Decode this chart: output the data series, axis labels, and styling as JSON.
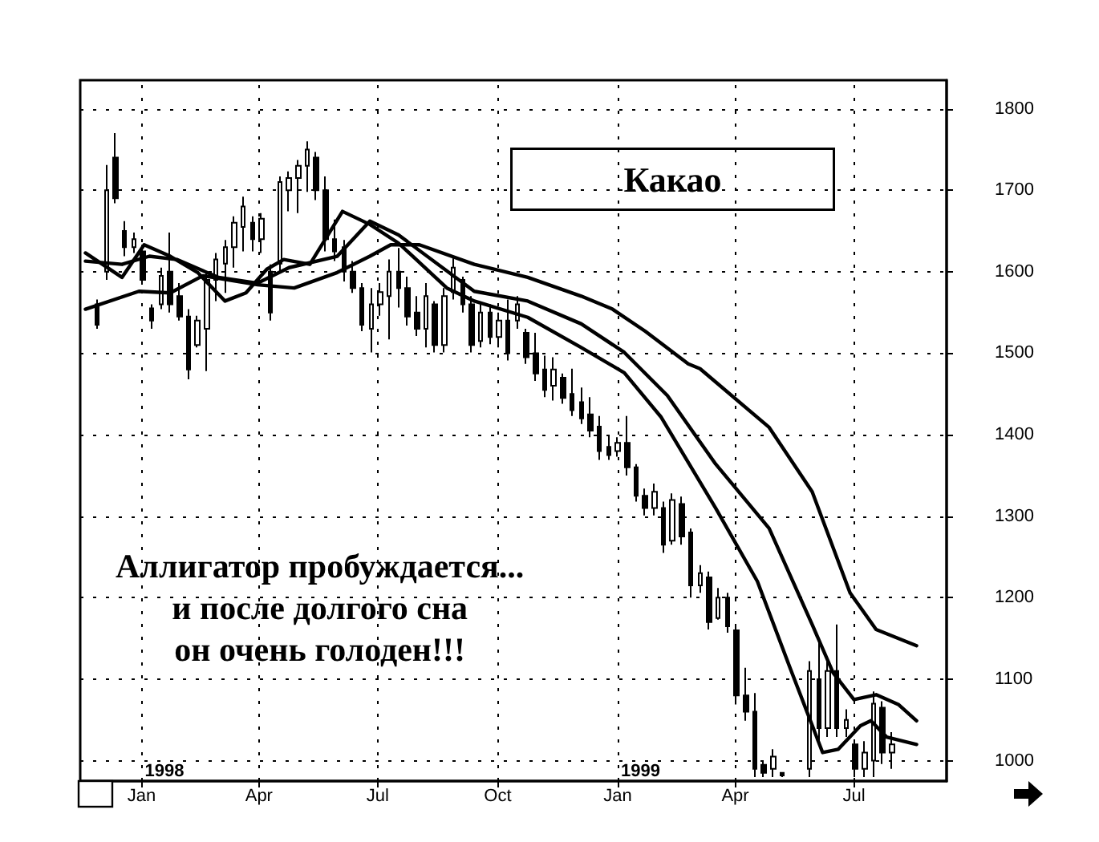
{
  "chart_data": {
    "type": "candlestick",
    "title": "Какао",
    "color": "#000000",
    "annotations": [
      "Аллигатор пробуждается...\nи после долгого сна\nон очень голоден!!!",
      "1998",
      "1999"
    ],
    "x": [
      "1997-11-28",
      "1997-12-05",
      "1997-12-12",
      "1997-12-19",
      "1997-12-26",
      "1998-01-02",
      "1998-01-09",
      "1998-01-16",
      "1998-01-23",
      "1998-01-30",
      "1998-02-06",
      "1998-02-13",
      "1998-02-20",
      "1998-02-27",
      "1998-03-06",
      "1998-03-13",
      "1998-03-20",
      "1998-03-27",
      "1998-04-03",
      "1998-04-10",
      "1998-04-17",
      "1998-04-24",
      "1998-05-01",
      "1998-05-08",
      "1998-05-15",
      "1998-05-22",
      "1998-05-29",
      "1998-06-05",
      "1998-06-12",
      "1998-06-19",
      "1998-06-26",
      "1998-07-03",
      "1998-07-10",
      "1998-07-17",
      "1998-07-24",
      "1998-07-31",
      "1998-08-07",
      "1998-08-14",
      "1998-08-21",
      "1998-08-28",
      "1998-09-04",
      "1998-09-11",
      "1998-09-18",
      "1998-09-25",
      "1998-10-02",
      "1998-10-09",
      "1998-10-16",
      "1998-10-23",
      "1998-10-30",
      "1998-11-06",
      "1998-11-13",
      "1998-11-20",
      "1998-11-27",
      "1998-12-04",
      "1998-12-11",
      "1998-12-18",
      "1998-12-25",
      "1999-01-01",
      "1999-01-08",
      "1999-01-15",
      "1999-01-22",
      "1999-01-29",
      "1999-02-05",
      "1999-02-12",
      "1999-02-19",
      "1999-02-26",
      "1999-03-05",
      "1999-03-12",
      "1999-03-19",
      "1999-03-26",
      "1999-04-02",
      "1999-04-09",
      "1999-04-16",
      "1999-04-23",
      "1999-04-30",
      "1999-05-07",
      "1999-05-28",
      "1999-06-04",
      "1999-06-11",
      "1999-06-18",
      "1999-06-25",
      "1999-07-02",
      "1999-07-09",
      "1999-07-16",
      "1999-07-23",
      "1999-07-30"
    ],
    "ohlc": [
      [
        1560,
        1566,
        1530,
        1535
      ],
      [
        1600,
        1731,
        1590,
        1700
      ],
      [
        1740,
        1770,
        1684,
        1690
      ],
      [
        1650,
        1662,
        1619,
        1630
      ],
      [
        1630,
        1648,
        1623,
        1640
      ],
      [
        1625,
        1633,
        1584,
        1590
      ],
      [
        1555,
        1560,
        1530,
        1540
      ],
      [
        1560,
        1605,
        1554,
        1595
      ],
      [
        1600,
        1648,
        1550,
        1560
      ],
      [
        1570,
        1586,
        1540,
        1545
      ],
      [
        1545,
        1554,
        1468,
        1480
      ],
      [
        1510,
        1546,
        1507,
        1540
      ],
      [
        1530,
        1600,
        1478,
        1590
      ],
      [
        1590,
        1623,
        1564,
        1615
      ],
      [
        1610,
        1639,
        1574,
        1630
      ],
      [
        1630,
        1668,
        1605,
        1660
      ],
      [
        1655,
        1692,
        1625,
        1680
      ],
      [
        1660,
        1668,
        1625,
        1640
      ],
      [
        1640,
        1672,
        1623,
        1665
      ],
      [
        1600,
        1609,
        1540,
        1550
      ],
      [
        1610,
        1717,
        1600,
        1710
      ],
      [
        1700,
        1723,
        1674,
        1715
      ],
      [
        1715,
        1737,
        1672,
        1730
      ],
      [
        1730,
        1760,
        1698,
        1750
      ],
      [
        1740,
        1747,
        1688,
        1700
      ],
      [
        1700,
        1717,
        1625,
        1640
      ],
      [
        1640,
        1664,
        1613,
        1625
      ],
      [
        1630,
        1639,
        1588,
        1600
      ],
      [
        1600,
        1613,
        1574,
        1580
      ],
      [
        1580,
        1586,
        1527,
        1535
      ],
      [
        1530,
        1580,
        1501,
        1560
      ],
      [
        1560,
        1586,
        1546,
        1575
      ],
      [
        1570,
        1615,
        1517,
        1600
      ],
      [
        1600,
        1629,
        1556,
        1580
      ],
      [
        1580,
        1594,
        1534,
        1545
      ],
      [
        1550,
        1570,
        1521,
        1530
      ],
      [
        1530,
        1586,
        1507,
        1570
      ],
      [
        1560,
        1564,
        1501,
        1510
      ],
      [
        1510,
        1580,
        1501,
        1570
      ],
      [
        1575,
        1619,
        1566,
        1605
      ],
      [
        1590,
        1594,
        1550,
        1560
      ],
      [
        1560,
        1570,
        1501,
        1510
      ],
      [
        1515,
        1560,
        1507,
        1550
      ],
      [
        1550,
        1560,
        1511,
        1520
      ],
      [
        1520,
        1550,
        1507,
        1540
      ],
      [
        1540,
        1566,
        1491,
        1500
      ],
      [
        1540,
        1570,
        1530,
        1560
      ],
      [
        1525,
        1530,
        1487,
        1495
      ],
      [
        1500,
        1525,
        1466,
        1475
      ],
      [
        1480,
        1497,
        1446,
        1455
      ],
      [
        1460,
        1495,
        1442,
        1480
      ],
      [
        1470,
        1475,
        1438,
        1445
      ],
      [
        1450,
        1481,
        1423,
        1430
      ],
      [
        1440,
        1458,
        1413,
        1420
      ],
      [
        1425,
        1446,
        1397,
        1405
      ],
      [
        1410,
        1423,
        1369,
        1380
      ],
      [
        1385,
        1399,
        1369,
        1375
      ],
      [
        1380,
        1397,
        1373,
        1390
      ],
      [
        1390,
        1423,
        1350,
        1360
      ],
      [
        1360,
        1364,
        1318,
        1325
      ],
      [
        1325,
        1334,
        1301,
        1310
      ],
      [
        1310,
        1340,
        1301,
        1330
      ],
      [
        1310,
        1318,
        1255,
        1265
      ],
      [
        1270,
        1328,
        1265,
        1320
      ],
      [
        1315,
        1324,
        1265,
        1275
      ],
      [
        1280,
        1285,
        1200,
        1215
      ],
      [
        1215,
        1240,
        1206,
        1230
      ],
      [
        1225,
        1232,
        1161,
        1170
      ],
      [
        1175,
        1212,
        1173,
        1200
      ],
      [
        1200,
        1206,
        1157,
        1165
      ],
      [
        1160,
        1167,
        1069,
        1080
      ],
      [
        1080,
        1114,
        1049,
        1060
      ],
      [
        1060,
        1083,
        980,
        990
      ],
      [
        995,
        1000,
        980,
        985
      ],
      [
        990,
        1014,
        980,
        1005
      ],
      [
        985,
        986,
        980,
        982
      ],
      [
        990,
        1122,
        980,
        1110
      ],
      [
        1100,
        1147,
        1024,
        1040
      ],
      [
        1040,
        1128,
        1029,
        1110
      ],
      [
        1110,
        1167,
        1029,
        1040
      ],
      [
        1040,
        1063,
        1029,
        1050
      ],
      [
        1020,
        1024,
        980,
        990
      ],
      [
        990,
        1024,
        980,
        1010
      ],
      [
        1000,
        1085,
        980,
        1070
      ],
      [
        1065,
        1073,
        996,
        1010
      ],
      [
        1010,
        1035,
        990,
        1020
      ]
    ],
    "series": [
      {
        "type": "line",
        "color": "#000000",
        "x": [
          "1997-11-19",
          "1997-12-17",
          "1998-01-03",
          "1998-01-23",
          "1998-02-13",
          "1998-03-06",
          "1998-03-22",
          "1998-04-07",
          "1998-04-20",
          "1998-05-10",
          "1998-06-04",
          "1998-06-25",
          "1998-07-17",
          "1998-08-23",
          "1998-09-13",
          "1998-10-24",
          "1998-12-04",
          "1999-01-06",
          "1999-02-03",
          "1999-03-17",
          "1999-04-18",
          "1999-05-13",
          "1999-06-07",
          "1999-06-19",
          "1999-07-06",
          "1999-07-14",
          "1999-07-26",
          "1999-08-18"
        ],
        "values": [
          1623,
          1593,
          1633,
          1619,
          1599,
          1564,
          1574,
          1603,
          1615,
          1609,
          1674,
          1658,
          1635,
          1580,
          1564,
          1544,
          1507,
          1476,
          1422,
          1310,
          1220,
          1114,
          1010,
          1014,
          1043,
          1049,
          1029,
          1020
        ]
      },
      {
        "type": "line",
        "color": "#000000",
        "x": [
          "1997-11-19",
          "1997-12-17",
          "1998-01-07",
          "1998-01-28",
          "1998-03-01",
          "1998-03-31",
          "1998-04-24",
          "1998-05-31",
          "1998-06-25",
          "1998-07-17",
          "1998-09-13",
          "1998-10-24",
          "1998-12-04",
          "1999-01-06",
          "1999-02-08",
          "1999-03-17",
          "1999-04-27",
          "1999-05-30",
          "1999-06-15",
          "1999-07-01",
          "1999-07-18",
          "1999-08-04",
          "1999-08-18"
        ],
        "values": [
          1613,
          1609,
          1619,
          1615,
          1593,
          1586,
          1605,
          1619,
          1662,
          1645,
          1576,
          1564,
          1536,
          1501,
          1448,
          1364,
          1285,
          1167,
          1108,
          1075,
          1081,
          1069,
          1049
        ]
      },
      {
        "type": "line",
        "color": "#000000",
        "x": [
          "1997-11-19",
          "1997-12-30",
          "1998-01-23",
          "1998-02-17",
          "1998-03-31",
          "1998-04-28",
          "1998-05-31",
          "1998-06-25",
          "1998-07-11",
          "1998-08-02",
          "1998-09-13",
          "1998-10-24",
          "1998-12-04",
          "1998-12-28",
          "1999-01-22",
          "1999-02-24",
          "1999-03-05",
          "1999-04-27",
          "1999-05-30",
          "1999-06-28",
          "1999-07-18",
          "1999-08-18"
        ],
        "values": [
          1554,
          1576,
          1574,
          1595,
          1584,
          1580,
          1599,
          1619,
          1633,
          1633,
          1609,
          1593,
          1570,
          1554,
          1527,
          1487,
          1481,
          1409,
          1330,
          1206,
          1161,
          1141
        ]
      }
    ],
    "xlim": [
      "1997-11-15",
      "1999-09-10"
    ],
    "xticks": [
      {
        "value": "1998-01-01",
        "label": "Jan"
      },
      {
        "value": "1998-04-01",
        "label": "Apr"
      },
      {
        "value": "1998-07-01",
        "label": "Jul"
      },
      {
        "value": "1998-10-01",
        "label": "Oct"
      },
      {
        "value": "1999-01-01",
        "label": "Jan"
      },
      {
        "value": "1999-04-01",
        "label": "Apr"
      },
      {
        "value": "1999-07-01",
        "label": "Jul"
      }
    ],
    "ylim": [
      975,
      1835
    ],
    "yticks": [
      1000,
      1100,
      1200,
      1300,
      1400,
      1500,
      1600,
      1700,
      1800
    ],
    "grid": true,
    "marker": "none"
  }
}
